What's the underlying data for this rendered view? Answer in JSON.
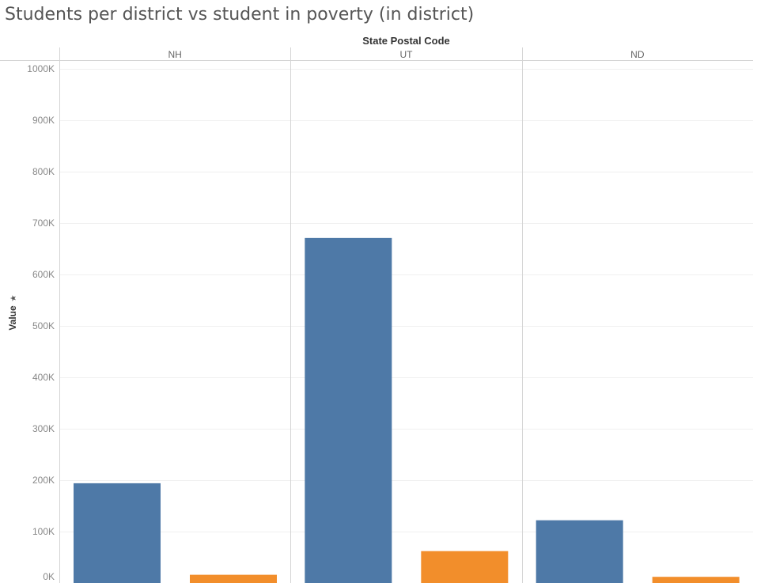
{
  "title": "Students per district vs  student in poverty (in district)",
  "chart_data": {
    "type": "bar",
    "column_header": "State Postal Code",
    "categories": [
      "NH",
      "UT",
      "ND"
    ],
    "series": [
      {
        "values": [
          194000,
          671000,
          122000
        ],
        "color": "#4e79a7"
      },
      {
        "values": [
          16000,
          62000,
          12000
        ],
        "color": "#f28e2b"
      }
    ],
    "ylabel": "Value",
    "ylim": [
      0,
      1000000
    ],
    "yticks": [
      0,
      100000,
      200000,
      300000,
      400000,
      500000,
      600000,
      700000,
      800000,
      900000,
      1000000
    ],
    "ytick_labels": [
      "0K",
      "100K",
      "200K",
      "300K",
      "400K",
      "500K",
      "600K",
      "700K",
      "800K",
      "900K",
      "1000K"
    ],
    "grid": true,
    "legend": "none"
  }
}
